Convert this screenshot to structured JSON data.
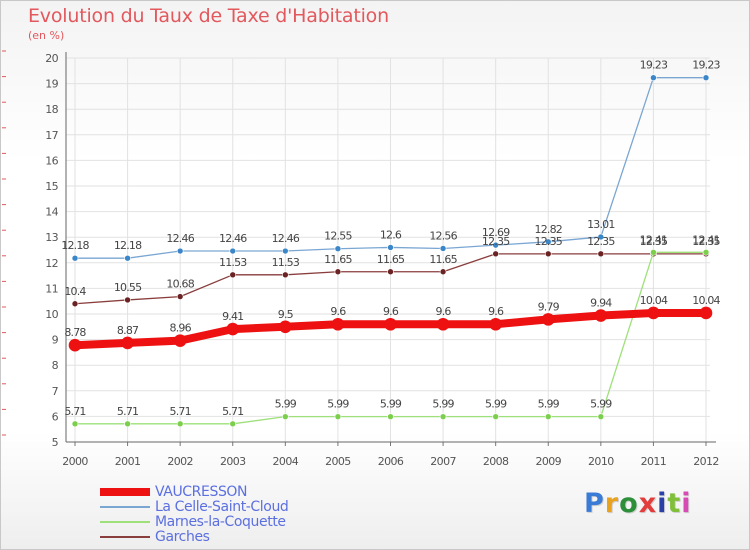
{
  "title": "Evolution du Taux de Taxe d'Habitation",
  "subtitle": "(en %)",
  "brand": {
    "text": "Proxiti",
    "colors": [
      "#3a7bd5",
      "#e8a21e",
      "#2d8f3a",
      "#e23c3c",
      "#2b3fa8",
      "#7fbf3a",
      "#d94bb4"
    ]
  },
  "colors": {
    "title": "#e2585d",
    "axis_text": "#555555",
    "grid": "#e2e2e2",
    "legend_text": "#5b6fe0"
  },
  "chart_data": {
    "type": "line",
    "title": "Evolution du Taux de Taxe d'Habitation",
    "ylabel": "(en %)",
    "xlabel": "",
    "ylim": [
      5,
      20
    ],
    "yticks": [
      5,
      6,
      7,
      8,
      9,
      10,
      11,
      12,
      13,
      14,
      15,
      16,
      17,
      18,
      19,
      20
    ],
    "grid": true,
    "legend_position": "bottom-left",
    "x": [
      "2000",
      "2001",
      "2002",
      "2003",
      "2004",
      "2005",
      "2006",
      "2007",
      "2008",
      "2009",
      "2010",
      "2011",
      "2012"
    ],
    "series": [
      {
        "name": "VAUCRESSON",
        "color": "#ee1111",
        "marker": "#ee1111",
        "width": 8,
        "values": [
          8.78,
          8.87,
          8.96,
          9.41,
          9.5,
          9.6,
          9.6,
          9.6,
          9.6,
          9.79,
          9.94,
          10.04,
          10.04
        ],
        "labels": [
          "8.78",
          "8.87",
          "8.96",
          "9.41",
          "9.5",
          "9.6",
          "9.6",
          "9.6",
          "9.6",
          "9.79",
          "9.94",
          "10.04",
          "10.04"
        ]
      },
      {
        "name": "La Celle-Saint-Cloud",
        "color": "#7aa6d2",
        "marker": "#3a86c8",
        "width": 1.3,
        "values": [
          12.18,
          12.18,
          12.46,
          12.46,
          12.46,
          12.55,
          12.6,
          12.56,
          12.69,
          12.82,
          13.01,
          19.23,
          19.23
        ],
        "labels": [
          "12.18",
          "12.18",
          "12.46",
          "12.46",
          "12.46",
          "12.55",
          "12.6",
          "12.56",
          "12.69",
          "12.82",
          "13.01",
          "19.23",
          "19.23"
        ]
      },
      {
        "name": "Marnes-la-Coquette",
        "color": "#9ee07a",
        "marker": "#7ccf4c",
        "width": 1.3,
        "values": [
          5.71,
          5.71,
          5.71,
          5.71,
          5.99,
          5.99,
          5.99,
          5.99,
          5.99,
          5.99,
          5.99,
          12.41,
          12.41
        ],
        "labels": [
          "5.71",
          "5.71",
          "5.71",
          "5.71",
          "5.99",
          "5.99",
          "5.99",
          "5.99",
          "5.99",
          "5.99",
          "5.99",
          "12.41",
          "12.41"
        ]
      },
      {
        "name": "Garches",
        "color": "#8a3d3d",
        "marker": "#6b2222",
        "width": 1.3,
        "values": [
          10.4,
          10.55,
          10.68,
          11.53,
          11.53,
          11.65,
          11.65,
          11.65,
          12.35,
          12.35,
          12.35,
          12.35,
          12.35
        ],
        "labels": [
          "10.4",
          "10.55",
          "10.68",
          "11.53",
          "11.53",
          "11.65",
          "11.65",
          "11.65",
          "12.35",
          "12.35",
          "12.35",
          "12.35",
          "12.35"
        ]
      }
    ]
  }
}
